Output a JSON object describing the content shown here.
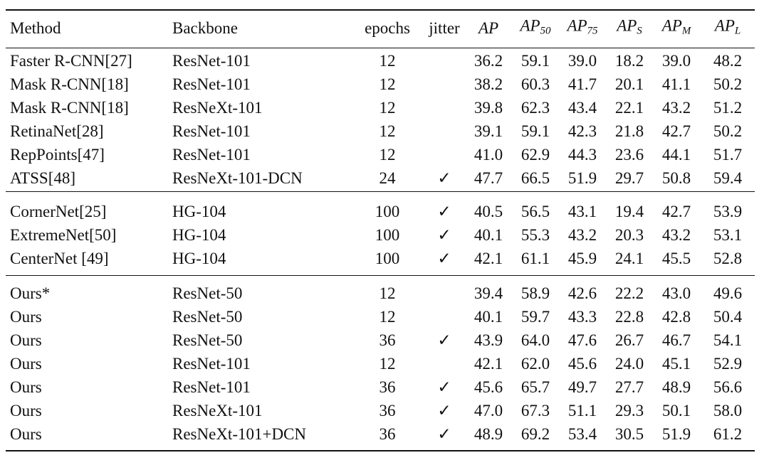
{
  "table": {
    "header": [
      "Method",
      "Backbone",
      "epochs",
      "jitter",
      "AP",
      {
        "base": "AP",
        "sub": "50"
      },
      {
        "base": "AP",
        "sub": "75"
      },
      {
        "base": "AP",
        "sub": "S"
      },
      {
        "base": "AP",
        "sub": "M"
      },
      {
        "base": "AP",
        "sub": "L"
      }
    ],
    "groups": [
      {
        "rows": [
          [
            "Faster R-CNN[27]",
            "ResNet-101",
            "12",
            null,
            "36.2",
            "59.1",
            "39.0",
            "18.2",
            "39.0",
            "48.2"
          ],
          [
            "Mask R-CNN[18]",
            "ResNet-101",
            "12",
            null,
            "38.2",
            "60.3",
            "41.7",
            "20.1",
            "41.1",
            "50.2"
          ],
          [
            "Mask R-CNN[18]",
            "ResNeXt-101",
            "12",
            null,
            "39.8",
            "62.3",
            "43.4",
            "22.1",
            "43.2",
            "51.2"
          ],
          [
            "RetinaNet[28]",
            "ResNet-101",
            "12",
            null,
            "39.1",
            "59.1",
            "42.3",
            "21.8",
            "42.7",
            "50.2"
          ],
          [
            "RepPoints[47]",
            "ResNet-101",
            "12",
            null,
            "41.0",
            "62.9",
            "44.3",
            "23.6",
            "44.1",
            "51.7"
          ],
          [
            "ATSS[48]",
            "ResNeXt-101-DCN",
            "24",
            "✓",
            "47.7",
            "66.5",
            "51.9",
            "29.7",
            "50.8",
            "59.4"
          ]
        ]
      },
      {
        "rows": [
          [
            "CornerNet[25]",
            "HG-104",
            "100",
            "✓",
            "40.5",
            "56.5",
            "43.1",
            "19.4",
            "42.7",
            "53.9"
          ],
          [
            "ExtremeNet[50]",
            "HG-104",
            "100",
            "✓",
            "40.1",
            "55.3",
            "43.2",
            "20.3",
            "43.2",
            "53.1"
          ],
          [
            "CenterNet [49]",
            "HG-104",
            "100",
            "✓",
            "42.1",
            "61.1",
            "45.9",
            "24.1",
            "45.5",
            "52.8"
          ]
        ]
      },
      {
        "rows": [
          [
            "Ours*",
            "ResNet-50",
            "12",
            null,
            "39.4",
            "58.9",
            "42.6",
            "22.2",
            "43.0",
            "49.6"
          ],
          [
            "Ours",
            "ResNet-50",
            "12",
            null,
            "40.1",
            "59.7",
            "43.3",
            "22.8",
            "42.8",
            "50.4"
          ],
          [
            "Ours",
            "ResNet-50",
            "36",
            "✓",
            "43.9",
            "64.0",
            "47.6",
            "26.7",
            "46.7",
            "54.1"
          ],
          [
            "Ours",
            "ResNet-101",
            "12",
            null,
            "42.1",
            "62.0",
            "45.6",
            "24.0",
            "45.1",
            "52.9"
          ],
          [
            "Ours",
            "ResNet-101",
            "36",
            "✓",
            "45.6",
            "65.7",
            "49.7",
            "27.7",
            "48.9",
            "56.6"
          ],
          [
            "Ours",
            "ResNeXt-101",
            "36",
            "✓",
            "47.0",
            "67.3",
            "51.1",
            "29.3",
            "50.1",
            "58.0"
          ],
          [
            "Ours",
            "ResNeXt-101+DCN",
            "36",
            "✓",
            "48.9",
            "69.2",
            "53.4",
            "30.5",
            "51.9",
            "61.2"
          ]
        ]
      }
    ]
  }
}
